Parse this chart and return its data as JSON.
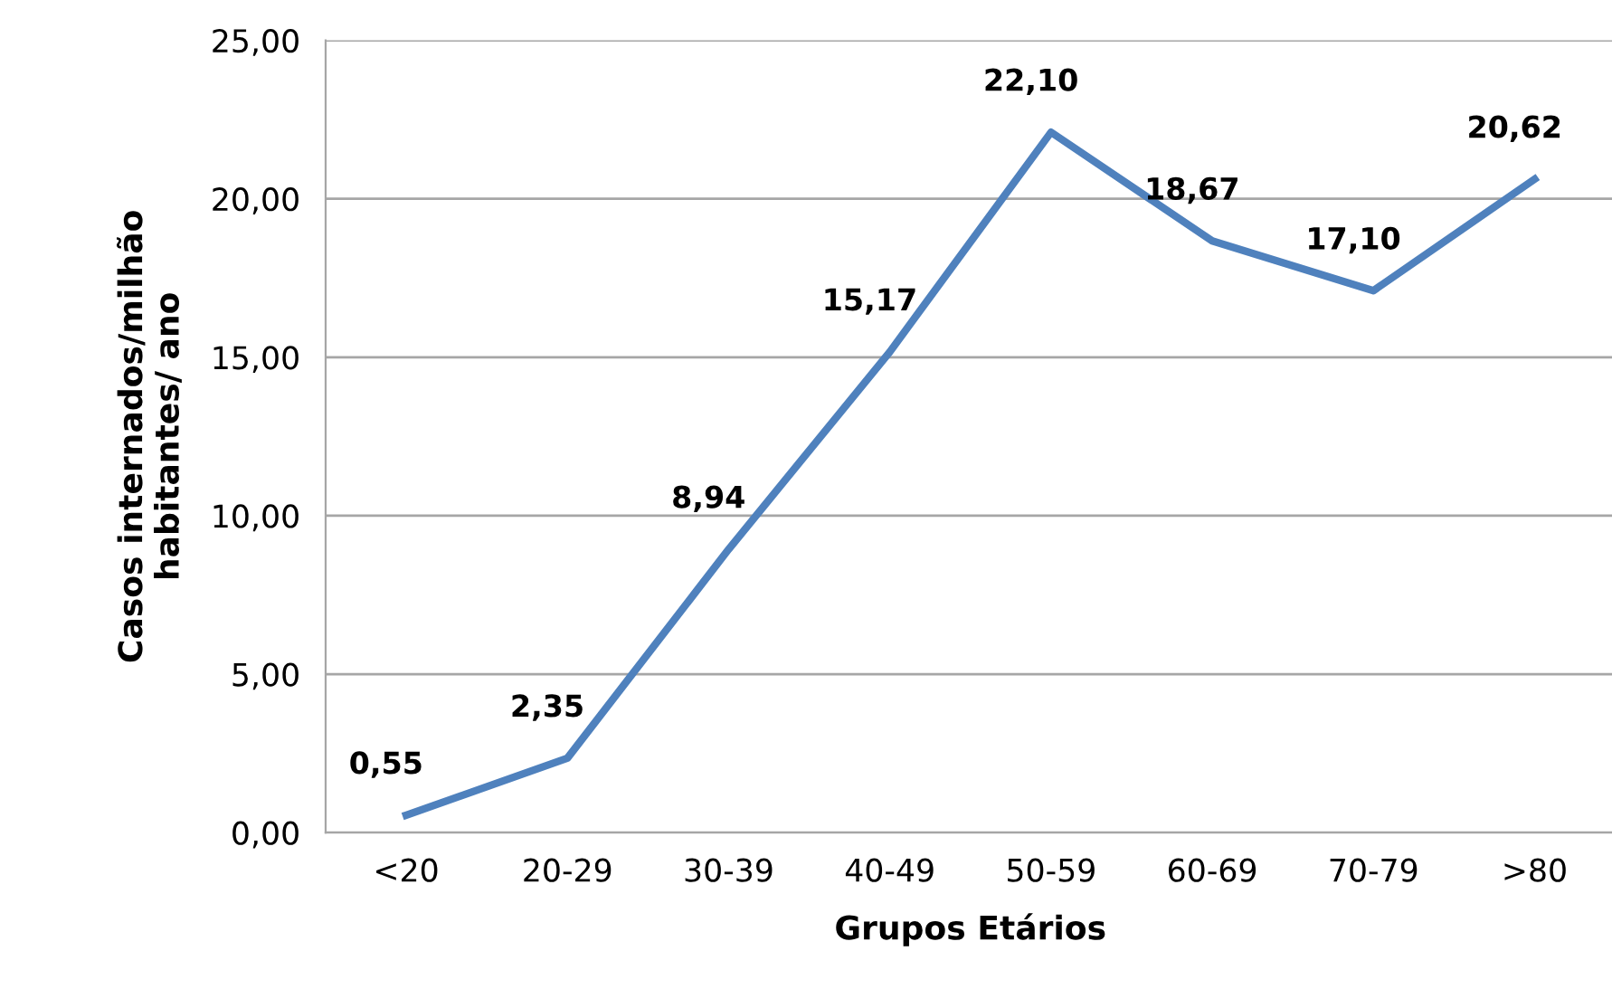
{
  "chart_data": {
    "type": "line",
    "xlabel": "Grupos Etários",
    "ylabel": "Casos internados/milhão\nhabitantes/ ano",
    "categories": [
      "<20",
      "20-29",
      "30-39",
      "40-49",
      "50-59",
      "60-69",
      "70-79",
      ">80"
    ],
    "series": [
      {
        "color": "#4f81bd",
        "values": [
          0.55,
          2.35,
          8.94,
          15.17,
          22.1,
          18.67,
          17.1,
          20.62
        ],
        "value_labels": [
          "0,55",
          "2,35",
          "8,94",
          "15,17",
          "22,10",
          "18,67",
          "17,10",
          "20,62"
        ]
      }
    ],
    "ylim": [
      0,
      25
    ],
    "yticks": [
      {
        "value": 0,
        "label": "0,00"
      },
      {
        "value": 5,
        "label": "5,00"
      },
      {
        "value": 10,
        "label": "10,00"
      },
      {
        "value": 15,
        "label": "15,00"
      },
      {
        "value": 20,
        "label": "20,00"
      },
      {
        "value": 25,
        "label": "25,00"
      }
    ],
    "grid": "y",
    "marker": "none",
    "line_style": "solid"
  }
}
